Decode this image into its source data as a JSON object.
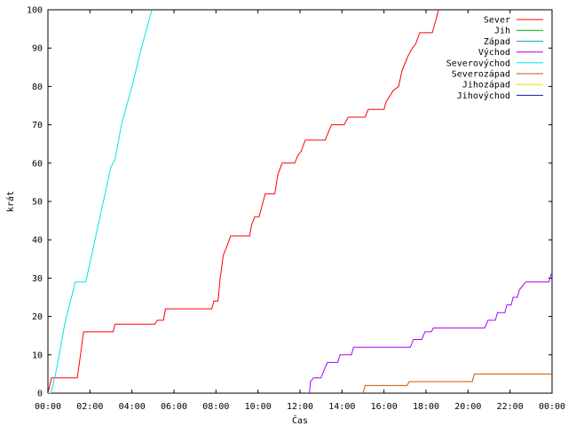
{
  "chart_data": {
    "type": "line",
    "title": "",
    "xlabel": "Čas",
    "ylabel": "krát",
    "xlim": [
      0,
      24
    ],
    "ylim": [
      0,
      100
    ],
    "x_ticks": [
      {
        "value": 0,
        "label": "00:00"
      },
      {
        "value": 2,
        "label": "02:00"
      },
      {
        "value": 4,
        "label": "04:00"
      },
      {
        "value": 6,
        "label": "06:00"
      },
      {
        "value": 8,
        "label": "08:00"
      },
      {
        "value": 10,
        "label": "10:00"
      },
      {
        "value": 12,
        "label": "12:00"
      },
      {
        "value": 14,
        "label": "14:00"
      },
      {
        "value": 16,
        "label": "16:00"
      },
      {
        "value": 18,
        "label": "18:00"
      },
      {
        "value": 20,
        "label": "20:00"
      },
      {
        "value": 22,
        "label": "22:00"
      },
      {
        "value": 24,
        "label": "00:00"
      }
    ],
    "y_ticks": [
      0,
      10,
      20,
      30,
      40,
      50,
      60,
      70,
      80,
      90,
      100
    ],
    "grid": false,
    "legend_position": "top-right",
    "series": [
      {
        "name": "Sever",
        "color": "#ff0000",
        "points": [
          [
            0,
            0
          ],
          [
            0.17,
            4
          ],
          [
            1.4,
            4
          ],
          [
            1.55,
            10
          ],
          [
            1.7,
            16
          ],
          [
            3.1,
            16
          ],
          [
            3.2,
            18
          ],
          [
            5.1,
            18
          ],
          [
            5.2,
            19
          ],
          [
            5.5,
            19
          ],
          [
            5.6,
            22
          ],
          [
            7.8,
            22
          ],
          [
            7.9,
            24
          ],
          [
            8.1,
            24
          ],
          [
            8.2,
            30
          ],
          [
            8.35,
            36
          ],
          [
            8.5,
            38
          ],
          [
            8.7,
            41
          ],
          [
            9.6,
            41
          ],
          [
            9.7,
            44
          ],
          [
            9.85,
            46
          ],
          [
            10.05,
            46
          ],
          [
            10.2,
            49
          ],
          [
            10.35,
            52
          ],
          [
            10.8,
            52
          ],
          [
            10.95,
            57
          ],
          [
            11.15,
            60
          ],
          [
            11.75,
            60
          ],
          [
            11.9,
            62
          ],
          [
            12.05,
            63
          ],
          [
            12.25,
            66
          ],
          [
            13.2,
            66
          ],
          [
            13.35,
            68
          ],
          [
            13.5,
            70
          ],
          [
            14.1,
            70
          ],
          [
            14.3,
            72
          ],
          [
            15.1,
            72
          ],
          [
            15.25,
            74
          ],
          [
            16.0,
            74
          ],
          [
            16.1,
            76
          ],
          [
            16.45,
            79
          ],
          [
            16.7,
            80
          ],
          [
            16.85,
            84
          ],
          [
            17.0,
            86
          ],
          [
            17.15,
            88
          ],
          [
            17.35,
            90
          ],
          [
            17.5,
            91
          ],
          [
            17.7,
            94
          ],
          [
            18.3,
            94
          ],
          [
            18.4,
            96
          ],
          [
            18.6,
            100
          ]
        ]
      },
      {
        "name": "Jih",
        "color": "#00aa00",
        "points": []
      },
      {
        "name": "Západ",
        "color": "#00aacc",
        "points": []
      },
      {
        "name": "Východ",
        "color": "#aa00ff",
        "points": [
          [
            12.45,
            0
          ],
          [
            12.5,
            3
          ],
          [
            12.65,
            4
          ],
          [
            13.0,
            4
          ],
          [
            13.15,
            6
          ],
          [
            13.3,
            8
          ],
          [
            13.8,
            8
          ],
          [
            13.9,
            10
          ],
          [
            14.45,
            10
          ],
          [
            14.55,
            12
          ],
          [
            17.25,
            12
          ],
          [
            17.4,
            14
          ],
          [
            17.8,
            14
          ],
          [
            17.95,
            16
          ],
          [
            18.25,
            16
          ],
          [
            18.35,
            17
          ],
          [
            20.8,
            17
          ],
          [
            20.95,
            19
          ],
          [
            21.3,
            19
          ],
          [
            21.4,
            21
          ],
          [
            21.75,
            21
          ],
          [
            21.85,
            23
          ],
          [
            22.05,
            23
          ],
          [
            22.15,
            25
          ],
          [
            22.35,
            25
          ],
          [
            22.45,
            27
          ],
          [
            22.6,
            28
          ],
          [
            22.75,
            29
          ],
          [
            23.85,
            29
          ],
          [
            23.95,
            31
          ],
          [
            24,
            31
          ]
        ]
      },
      {
        "name": "Severovýchod",
        "color": "#00e5e5",
        "points": [
          [
            0,
            0
          ],
          [
            0.15,
            0
          ],
          [
            0.4,
            6
          ],
          [
            0.8,
            18
          ],
          [
            1.3,
            29
          ],
          [
            1.8,
            29
          ],
          [
            2.2,
            39
          ],
          [
            2.6,
            49
          ],
          [
            3.0,
            59
          ],
          [
            3.2,
            61
          ],
          [
            3.5,
            70
          ],
          [
            4.0,
            80
          ],
          [
            4.45,
            90
          ],
          [
            4.95,
            100
          ]
        ]
      },
      {
        "name": "Severozápad",
        "color": "#cc5500",
        "points": [
          [
            15.0,
            0
          ],
          [
            15.1,
            2
          ],
          [
            17.1,
            2
          ],
          [
            17.2,
            3
          ],
          [
            20.2,
            3
          ],
          [
            20.3,
            5
          ],
          [
            24,
            5
          ]
        ]
      },
      {
        "name": "Jihozápad",
        "color": "#eedd00",
        "points": []
      },
      {
        "name": "Jihovýchod",
        "color": "#1a1a99",
        "points": []
      }
    ]
  }
}
